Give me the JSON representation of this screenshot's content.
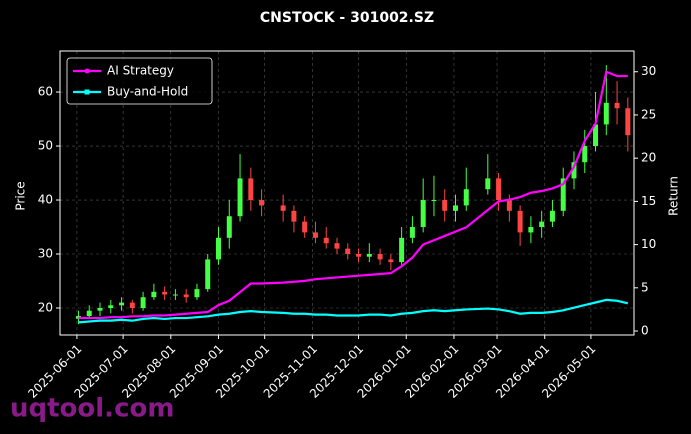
{
  "chart_data": {
    "type": "candlestick",
    "title": "CNSTOCK - 301002.SZ",
    "ylabel": "Price",
    "y2label": "Return",
    "watermark": "uqtool.com",
    "up_color": "#44ff44",
    "down_color": "#ff4444",
    "x": [
      "2025-06-02",
      "2025-06-09",
      "2025-06-16",
      "2025-06-23",
      "2025-06-30",
      "2025-07-07",
      "2025-07-14",
      "2025-07-21",
      "2025-07-28",
      "2025-08-04",
      "2025-08-11",
      "2025-08-18",
      "2025-08-25",
      "2025-09-01",
      "2025-09-08",
      "2025-09-15",
      "2025-09-22",
      "2025-09-29",
      "2025-10-13",
      "2025-10-20",
      "2025-10-27",
      "2025-11-03",
      "2025-11-10",
      "2025-11-17",
      "2025-11-24",
      "2025-12-01",
      "2025-12-08",
      "2025-12-15",
      "2025-12-22",
      "2025-12-29",
      "2026-01-05",
      "2026-01-12",
      "2026-01-19",
      "2026-01-26",
      "2026-02-02",
      "2026-02-09",
      "2026-02-23",
      "2026-03-02",
      "2026-03-09",
      "2026-03-16",
      "2026-03-23",
      "2026-03-30",
      "2026-04-06",
      "2026-04-13",
      "2026-04-20",
      "2026-04-27",
      "2026-05-04",
      "2026-05-11",
      "2026-05-18",
      "2026-05-25"
    ],
    "open": [
      18,
      18.5,
      19.5,
      20,
      20.5,
      21,
      20,
      22,
      23,
      22.5,
      22.5,
      22,
      23.5,
      29,
      33,
      37,
      44,
      40,
      39,
      38,
      36,
      34,
      33,
      32,
      31,
      30,
      29.5,
      30,
      29,
      28.5,
      33,
      35,
      40,
      40,
      38,
      39,
      42,
      44,
      40,
      38,
      34,
      35,
      36,
      38,
      44,
      47,
      50,
      54,
      58,
      57
    ],
    "high": [
      19.5,
      20.5,
      21,
      21.5,
      22,
      21.5,
      23,
      24.5,
      24,
      23.5,
      23.5,
      24.5,
      30,
      35,
      40,
      48.5,
      46,
      42,
      41,
      39,
      37,
      36,
      35,
      33,
      32,
      31,
      32,
      31,
      30,
      35,
      37,
      44,
      44.5,
      42,
      41,
      46,
      48.5,
      45,
      41,
      39,
      37,
      38,
      40,
      46,
      49,
      53,
      60,
      65,
      62,
      59
    ],
    "low": [
      17,
      18,
      18.5,
      19,
      19.5,
      19,
      19.5,
      21.5,
      21.5,
      21.5,
      21,
      21.5,
      23,
      28,
      31,
      36,
      38,
      37,
      36,
      34,
      33,
      32,
      31,
      30,
      29,
      28.5,
      28.5,
      28,
      27,
      28,
      32,
      34,
      37,
      36,
      36,
      38,
      41,
      38,
      36,
      31.5,
      32,
      33,
      35,
      37,
      42,
      45,
      49,
      52,
      54,
      49
    ],
    "close": [
      18.5,
      19.5,
      20,
      20.5,
      21,
      20,
      22,
      23,
      22.5,
      22.5,
      22,
      23.5,
      29,
      33,
      37,
      44,
      40,
      39,
      38,
      36,
      34,
      33,
      32,
      31,
      30,
      29.5,
      30,
      29,
      28.5,
      33,
      35,
      40,
      40,
      38,
      39,
      42,
      44,
      40,
      38,
      34,
      35,
      36,
      38,
      44,
      47,
      50,
      54,
      58,
      57,
      52
    ],
    "series": [
      {
        "name": "AI Strategy",
        "color": "#ff00ff",
        "axis": "y2",
        "values": [
          1.5,
          1.5,
          1.5,
          1.6,
          1.6,
          1.7,
          1.7,
          1.8,
          1.8,
          1.9,
          2,
          2.1,
          2.2,
          3,
          3.5,
          4.5,
          5.5,
          5.5,
          5.6,
          5.7,
          5.8,
          6,
          6.1,
          6.2,
          6.3,
          6.4,
          6.5,
          6.6,
          6.7,
          7.5,
          8.5,
          10,
          10.5,
          11,
          11.5,
          12,
          14,
          15,
          15.2,
          15.5,
          16,
          16.2,
          16.5,
          17,
          19,
          22,
          24,
          30,
          29.5,
          29.5
        ]
      },
      {
        "name": "Buy-and-Hold",
        "color": "#00ffff",
        "axis": "y2",
        "values": [
          1,
          1.1,
          1.2,
          1.2,
          1.3,
          1.2,
          1.4,
          1.5,
          1.4,
          1.5,
          1.5,
          1.6,
          1.7,
          1.9,
          2,
          2.2,
          2.3,
          2.2,
          2.1,
          2,
          2,
          1.9,
          1.9,
          1.8,
          1.8,
          1.8,
          1.9,
          1.9,
          1.8,
          2,
          2.1,
          2.3,
          2.4,
          2.3,
          2.4,
          2.5,
          2.6,
          2.5,
          2.3,
          2,
          2.1,
          2.1,
          2.2,
          2.4,
          2.7,
          3,
          3.3,
          3.6,
          3.5,
          3.2
        ]
      }
    ],
    "xlim": [
      "2025-05-21",
      "2026-05-29"
    ],
    "xticks": [
      "2025-06-01",
      "2025-07-01",
      "2025-08-01",
      "2025-09-01",
      "2025-10-01",
      "2025-11-01",
      "2025-12-01",
      "2026-01-01",
      "2026-02-01",
      "2026-03-01",
      "2026-04-01",
      "2026-05-01"
    ],
    "ylim": [
      15,
      67.6
    ],
    "yticks": [
      20,
      30,
      40,
      50,
      60
    ],
    "y2lim": [
      -0.46,
      32.4
    ],
    "y2ticks": [
      0,
      5,
      10,
      15,
      20,
      25,
      30
    ],
    "grid": true,
    "legend": "upper left"
  }
}
